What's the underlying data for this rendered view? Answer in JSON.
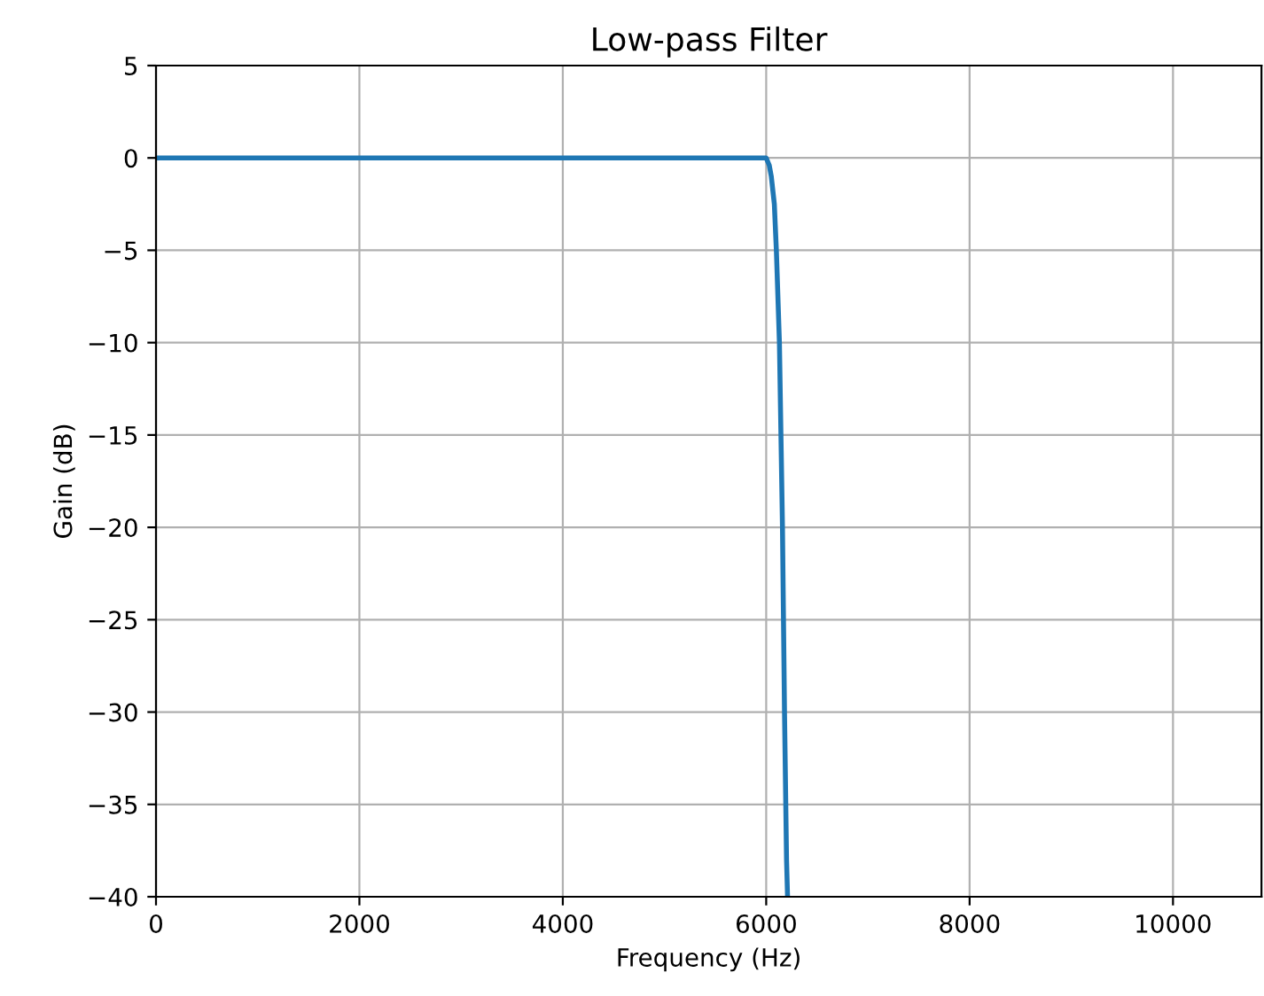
{
  "chart_data": {
    "type": "line",
    "title": "Low-pass Filter",
    "xlabel": "Frequency (Hz)",
    "ylabel": "Gain (dB)",
    "x": [
      0,
      1000,
      2000,
      3000,
      4000,
      5000,
      5800,
      5950,
      6000,
      6030,
      6050,
      6080,
      6100,
      6130,
      6160,
      6180,
      6200,
      6210
    ],
    "series": [
      {
        "color": "#1f77b4",
        "values": [
          0,
          0,
          0,
          0,
          0,
          0,
          0,
          0,
          0,
          -0.4,
          -1,
          -2.5,
          -5,
          -10,
          -20,
          -30,
          -38,
          -40
        ]
      }
    ],
    "xlim": [
      0,
      10870
    ],
    "xticks": [
      0,
      2000,
      4000,
      6000,
      8000,
      10000
    ],
    "ylim": [
      -40,
      5
    ],
    "yticks": [
      -40,
      -35,
      -30,
      -25,
      -20,
      -15,
      -10,
      -5,
      0,
      5
    ],
    "grid": true,
    "legend": false
  }
}
